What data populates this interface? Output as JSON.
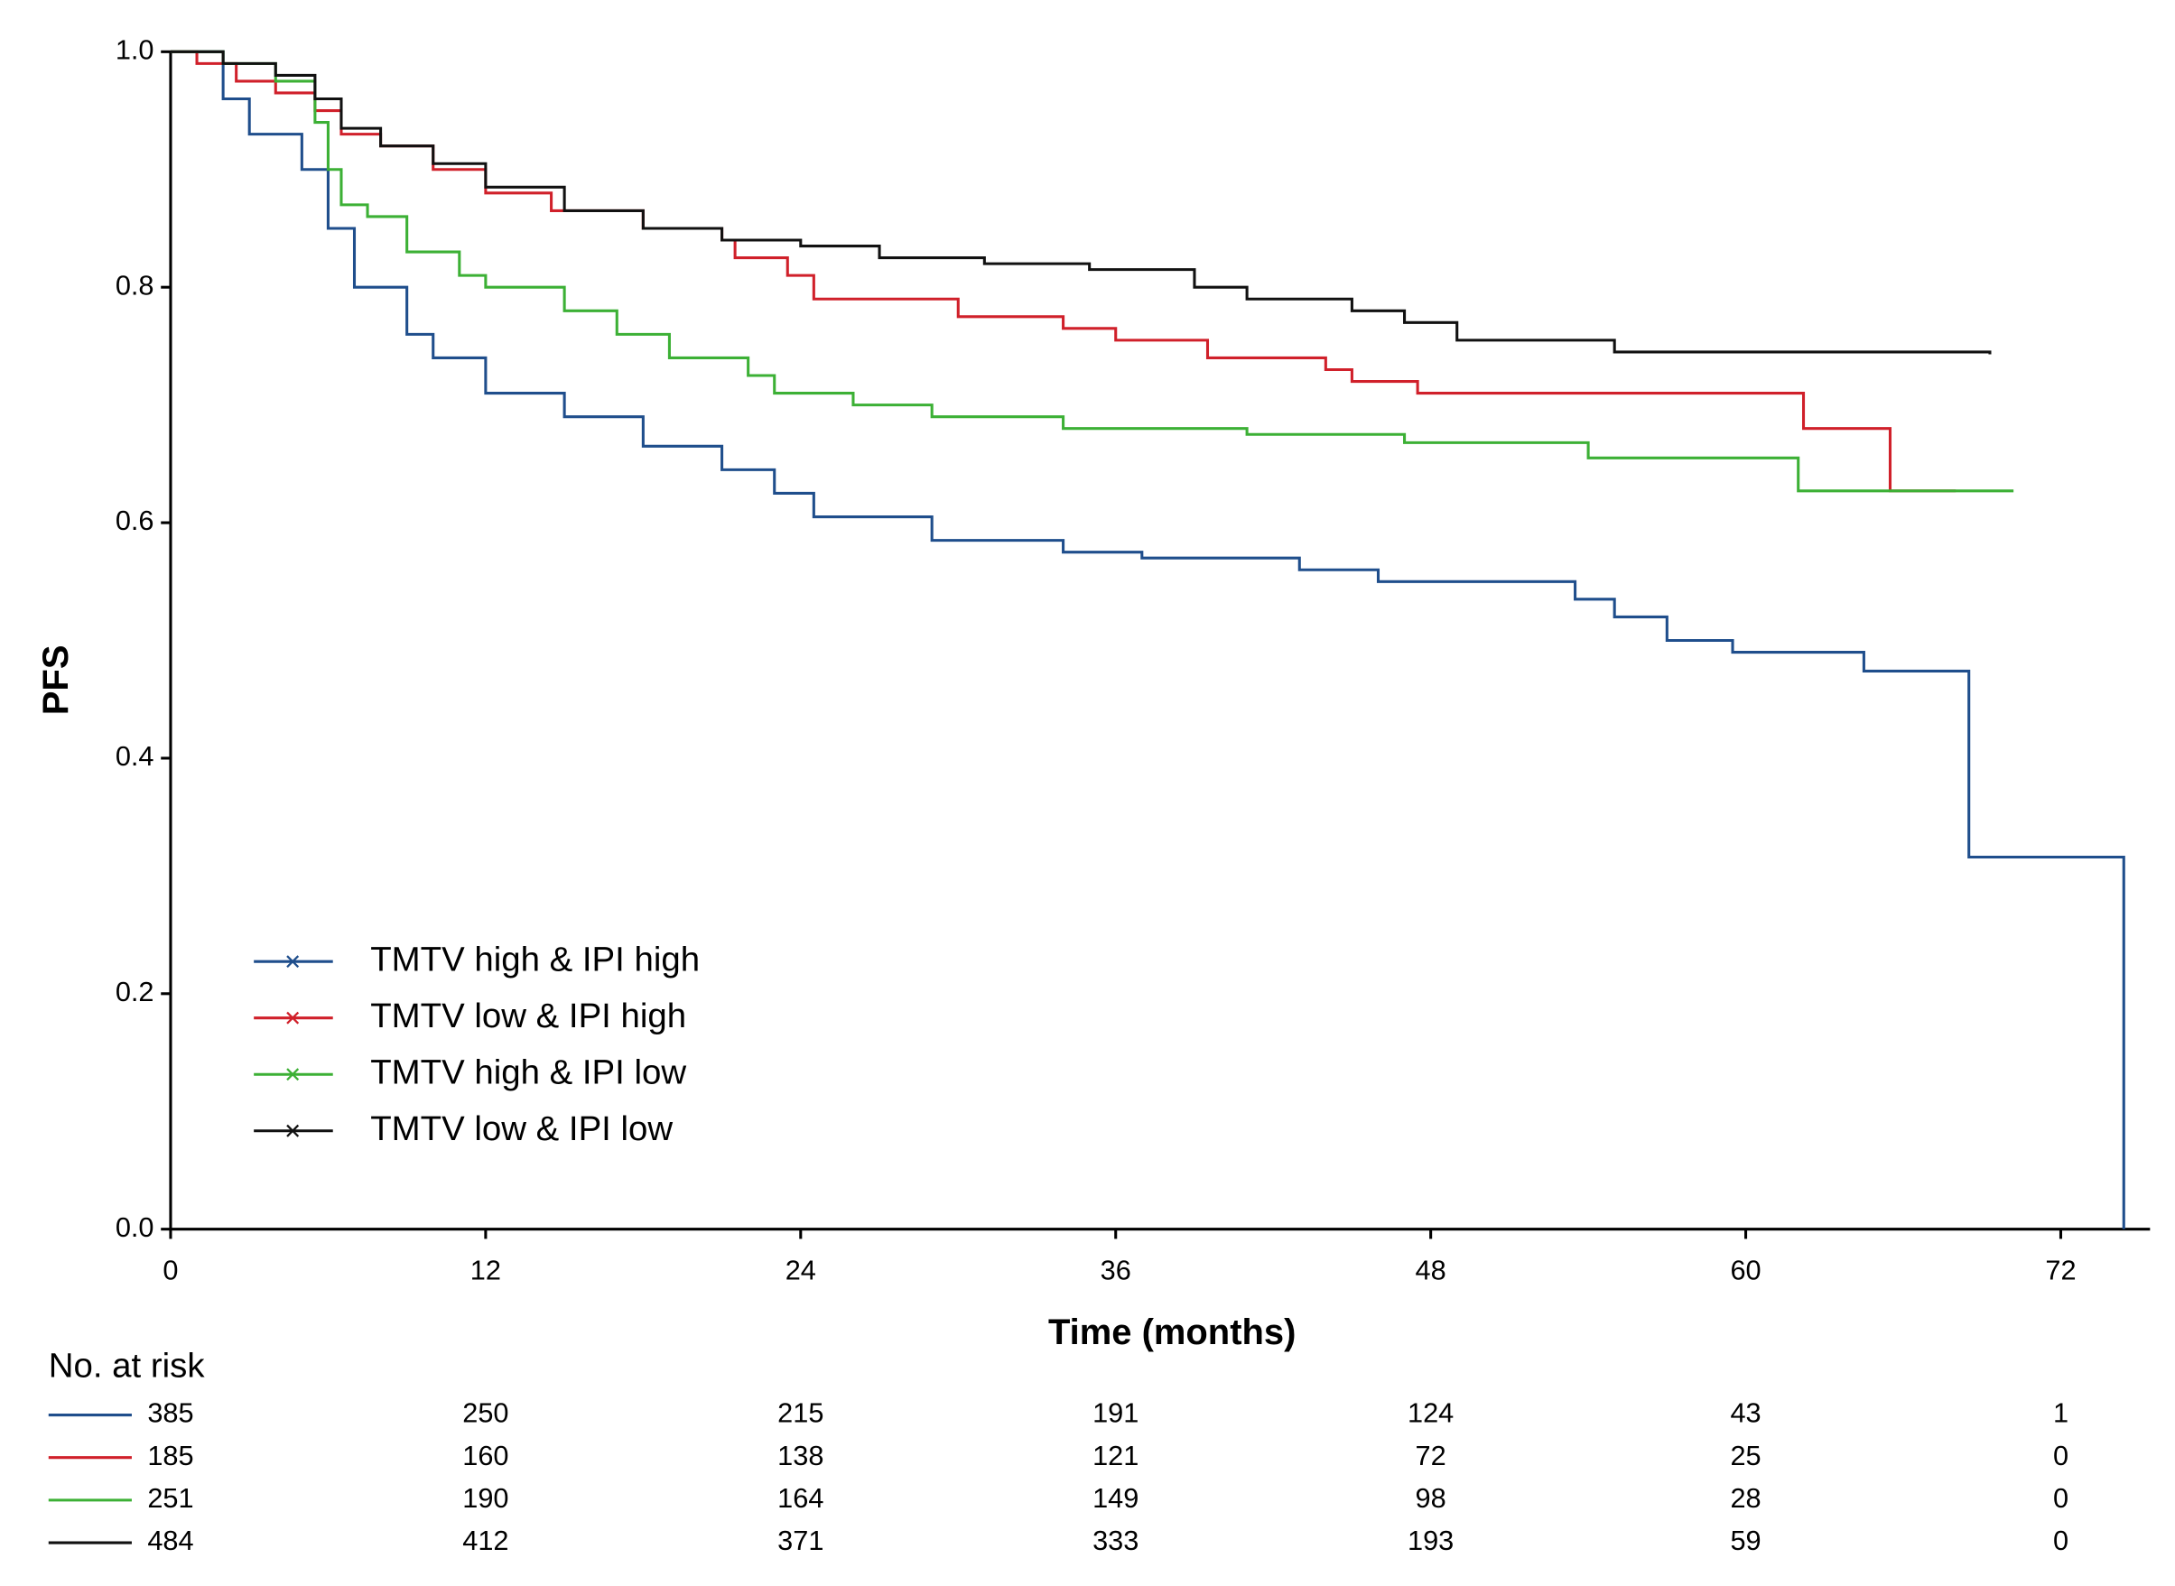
{
  "chart_data": {
    "type": "step",
    "y_label": "PFS",
    "x_label": "Time (months)",
    "xlim": [
      0,
      75.4
    ],
    "ylim": [
      0,
      1.0
    ],
    "xticks": [
      0,
      12,
      24,
      36,
      48,
      60,
      72
    ],
    "yticks": [
      {
        "value": 0,
        "label": "0.0"
      },
      {
        "value": 0.2,
        "label": "0.2"
      },
      {
        "value": 0.4,
        "label": "0.4"
      },
      {
        "value": 0.6,
        "label": "0.6"
      },
      {
        "value": 0.8,
        "label": "0.8"
      },
      {
        "value": 1.0,
        "label": "1.0"
      }
    ],
    "legend_position": "lower left",
    "risk_table_title": "No. at risk",
    "series": [
      {
        "name": "TMTV high & IPI high",
        "color": "#1f4e8c",
        "x": [
          0,
          2,
          3,
          5,
          6,
          7,
          9,
          10,
          12,
          15,
          18,
          21,
          23,
          24.5,
          29,
          34,
          37,
          43,
          46,
          53.5,
          55,
          57,
          59.5,
          64.5,
          68.5,
          74.4
        ],
        "values": [
          1.0,
          0.96,
          0.93,
          0.9,
          0.85,
          0.8,
          0.76,
          0.74,
          0.71,
          0.69,
          0.665,
          0.645,
          0.625,
          0.605,
          0.585,
          0.575,
          0.57,
          0.56,
          0.55,
          0.535,
          0.52,
          0.5,
          0.49,
          0.474,
          0.316,
          0.0
        ],
        "at_risk": [
          385,
          250,
          215,
          191,
          124,
          43,
          1
        ]
      },
      {
        "name": "TMTV low & IPI high",
        "color": "#d0202a",
        "x": [
          0,
          1,
          2.5,
          4,
          5.5,
          6.5,
          8,
          10,
          12,
          14.5,
          18,
          21,
          21.5,
          23.5,
          24.5,
          30,
          34,
          36,
          39.5,
          44,
          45,
          47.5,
          62.2,
          65.5,
          68
        ],
        "values": [
          1.0,
          0.99,
          0.975,
          0.965,
          0.95,
          0.93,
          0.92,
          0.9,
          0.88,
          0.865,
          0.85,
          0.84,
          0.825,
          0.81,
          0.79,
          0.775,
          0.765,
          0.755,
          0.74,
          0.73,
          0.72,
          0.71,
          0.68,
          0.627,
          0.627
        ],
        "at_risk": [
          185,
          160,
          138,
          121,
          72,
          25,
          0
        ]
      },
      {
        "name": "TMTV high & IPI low",
        "color": "#3cb035",
        "x": [
          0,
          2,
          4,
          5.5,
          6,
          6.5,
          7.5,
          9,
          11,
          12,
          15,
          17,
          19,
          22,
          23,
          26,
          29,
          34,
          41,
          47,
          54,
          62,
          70.2
        ],
        "values": [
          1.0,
          0.99,
          0.975,
          0.94,
          0.9,
          0.87,
          0.86,
          0.83,
          0.81,
          0.8,
          0.78,
          0.76,
          0.74,
          0.725,
          0.71,
          0.7,
          0.69,
          0.68,
          0.675,
          0.668,
          0.655,
          0.627,
          0.627
        ],
        "at_risk": [
          251,
          190,
          164,
          149,
          98,
          28,
          0
        ]
      },
      {
        "name": "TMTV low & IPI low",
        "color": "#111111",
        "x": [
          0,
          2,
          4,
          5.5,
          6.5,
          8,
          10,
          12,
          15,
          18,
          21,
          24,
          27,
          31,
          35,
          39,
          41,
          45,
          47,
          49,
          55,
          69.3
        ],
        "values": [
          1.0,
          0.99,
          0.98,
          0.96,
          0.935,
          0.92,
          0.905,
          0.885,
          0.865,
          0.85,
          0.84,
          0.835,
          0.825,
          0.82,
          0.815,
          0.8,
          0.79,
          0.78,
          0.77,
          0.755,
          0.745,
          0.743
        ],
        "at_risk": [
          484,
          412,
          371,
          333,
          193,
          59,
          0
        ]
      }
    ]
  }
}
